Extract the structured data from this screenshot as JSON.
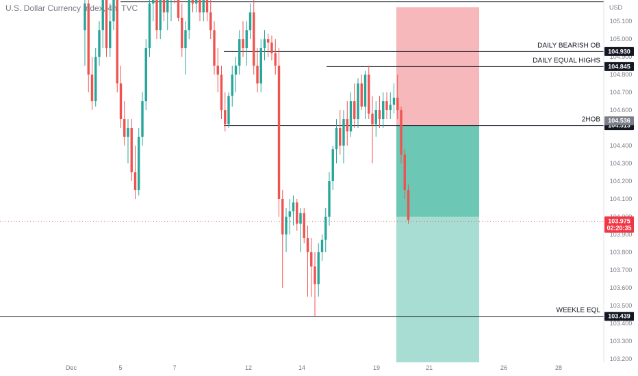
{
  "chart_data": {
    "type": "candlestick",
    "title": "U.S. Dollar Currency Index, 4h, TVC",
    "currency_label": "USD",
    "ylim": [
      103.18,
      105.22
    ],
    "y_ticks": [
      105.1,
      105.0,
      104.9,
      104.8,
      104.7,
      104.6,
      104.5,
      104.4,
      104.3,
      104.2,
      104.1,
      104.0,
      103.9,
      103.8,
      103.7,
      103.6,
      103.5,
      103.4,
      103.3,
      103.2
    ],
    "x_ticks": [
      "Dec",
      "5",
      "7",
      "12",
      "14",
      "19",
      "21",
      "26",
      "28"
    ],
    "grid": false,
    "colors": {
      "up": "#26a69a",
      "down": "#ef5350",
      "risk": "#f7b8bc",
      "reward": "#6cc7b5",
      "target": "#a7ddd2",
      "level": "#131722",
      "dark_tag": "#131722",
      "price_tag": "#f23645",
      "mid_tag": "#7b7e89"
    },
    "candles": [
      [
        105.05,
        105.3,
        104.85,
        105.2
      ],
      [
        105.2,
        105.25,
        104.7,
        104.8
      ],
      [
        104.8,
        104.9,
        104.6,
        104.65
      ],
      [
        104.65,
        104.95,
        104.62,
        104.9
      ],
      [
        104.9,
        105.1,
        104.85,
        105.05
      ],
      [
        105.05,
        105.35,
        104.95,
        105.3
      ],
      [
        105.3,
        105.35,
        104.9,
        104.95
      ],
      [
        104.95,
        105.2,
        104.9,
        105.1
      ],
      [
        105.1,
        105.3,
        105.05,
        105.28
      ],
      [
        105.28,
        105.35,
        104.7,
        104.75
      ],
      [
        104.75,
        104.85,
        104.5,
        104.55
      ],
      [
        104.55,
        104.65,
        104.4,
        104.45
      ],
      [
        104.45,
        104.55,
        104.3,
        104.5
      ],
      [
        104.5,
        104.55,
        104.2,
        104.25
      ],
      [
        104.25,
        104.4,
        104.1,
        104.15
      ],
      [
        104.15,
        104.5,
        104.12,
        104.45
      ],
      [
        104.45,
        104.7,
        104.4,
        104.65
      ],
      [
        104.65,
        105.0,
        104.6,
        104.95
      ],
      [
        104.95,
        105.25,
        104.9,
        105.2
      ],
      [
        105.2,
        105.35,
        105.1,
        105.3
      ],
      [
        105.3,
        105.35,
        105.0,
        105.05
      ],
      [
        105.05,
        105.3,
        105.0,
        105.25
      ],
      [
        105.25,
        105.32,
        105.1,
        105.15
      ],
      [
        105.15,
        105.25,
        105.05,
        105.22
      ],
      [
        105.22,
        105.3,
        105.1,
        105.28
      ],
      [
        105.28,
        105.35,
        105.2,
        105.25
      ],
      [
        105.25,
        105.3,
        105.1,
        105.12
      ],
      [
        105.12,
        105.2,
        104.9,
        104.95
      ],
      [
        104.95,
        105.1,
        104.8,
        105.05
      ],
      [
        105.05,
        105.35,
        105.0,
        105.3
      ],
      [
        105.3,
        105.35,
        105.15,
        105.2
      ],
      [
        105.2,
        105.35,
        105.15,
        105.3
      ],
      [
        105.3,
        105.35,
        105.1,
        105.15
      ],
      [
        105.15,
        105.3,
        105.1,
        105.25
      ],
      [
        105.25,
        105.35,
        105.1,
        105.15
      ],
      [
        105.15,
        105.25,
        105.0,
        105.05
      ],
      [
        105.05,
        105.1,
        104.8,
        104.85
      ],
      [
        104.85,
        104.95,
        104.7,
        104.8
      ],
      [
        104.8,
        104.85,
        104.55,
        104.6
      ],
      [
        104.6,
        104.7,
        104.48,
        104.52
      ],
      [
        104.52,
        104.7,
        104.5,
        104.68
      ],
      [
        104.68,
        104.85,
        104.62,
        104.8
      ],
      [
        104.8,
        104.9,
        104.7,
        104.85
      ],
      [
        104.85,
        105.05,
        104.8,
        105.0
      ],
      [
        105.0,
        105.1,
        104.9,
        104.95
      ],
      [
        104.95,
        105.1,
        104.85,
        105.05
      ],
      [
        105.05,
        105.2,
        105.0,
        105.15
      ],
      [
        105.15,
        105.25,
        104.8,
        104.85
      ],
      [
        104.85,
        104.95,
        104.7,
        104.75
      ],
      [
        104.75,
        105.0,
        104.7,
        104.95
      ],
      [
        104.95,
        105.05,
        104.88,
        105.0
      ],
      [
        105.0,
        105.03,
        104.9,
        104.98
      ],
      [
        104.98,
        105.02,
        104.88,
        104.92
      ],
      [
        104.92,
        105.0,
        104.8,
        104.85
      ],
      [
        104.85,
        104.95,
        104.0,
        104.1
      ],
      [
        104.1,
        104.15,
        103.6,
        103.9
      ],
      [
        103.9,
        104.05,
        103.8,
        104.0
      ],
      [
        104.0,
        104.1,
        103.9,
        104.03
      ],
      [
        104.03,
        104.12,
        103.95,
        104.08
      ],
      [
        104.08,
        104.1,
        103.92,
        103.96
      ],
      [
        103.96,
        104.05,
        103.8,
        104.02
      ],
      [
        104.02,
        104.05,
        103.85,
        103.88
      ],
      [
        103.88,
        103.95,
        103.55,
        103.8
      ],
      [
        103.8,
        103.88,
        103.55,
        103.72
      ],
      [
        103.72,
        103.8,
        103.44,
        103.62
      ],
      [
        103.62,
        103.85,
        103.55,
        103.8
      ],
      [
        103.8,
        103.9,
        103.75,
        103.87
      ],
      [
        103.87,
        104.05,
        103.8,
        104.0
      ],
      [
        104.0,
        104.25,
        103.95,
        104.2
      ],
      [
        104.2,
        104.4,
        104.15,
        104.38
      ],
      [
        104.38,
        104.55,
        104.3,
        104.5
      ],
      [
        104.5,
        104.6,
        104.35,
        104.4
      ],
      [
        104.4,
        104.6,
        104.3,
        104.55
      ],
      [
        104.55,
        104.65,
        104.4,
        104.48
      ],
      [
        104.48,
        104.7,
        104.45,
        104.65
      ],
      [
        104.65,
        104.75,
        104.5,
        104.55
      ],
      [
        104.55,
        104.78,
        104.5,
        104.75
      ],
      [
        104.75,
        104.8,
        104.6,
        104.62
      ],
      [
        104.62,
        104.82,
        104.55,
        104.8
      ],
      [
        104.8,
        104.85,
        104.55,
        104.58
      ],
      [
        104.58,
        104.68,
        104.3,
        104.52
      ],
      [
        104.52,
        104.65,
        104.45,
        104.6
      ],
      [
        104.6,
        104.68,
        104.5,
        104.55
      ],
      [
        104.55,
        104.7,
        104.5,
        104.65
      ],
      [
        104.65,
        104.7,
        104.55,
        104.6
      ],
      [
        104.6,
        104.7,
        104.55,
        104.63
      ],
      [
        104.63,
        104.75,
        104.58,
        104.67
      ],
      [
        104.67,
        104.8,
        104.55,
        104.6
      ],
      [
        104.6,
        104.62,
        104.3,
        104.35
      ],
      [
        104.35,
        104.38,
        104.1,
        104.15
      ],
      [
        104.15,
        104.18,
        103.96,
        103.98
      ]
    ],
    "levels": [
      {
        "label": "DAILY BEARISH OB",
        "price": 104.93,
        "tag": "104.930"
      },
      {
        "label": "DAILY EQUAL HIGHS",
        "price": 104.845,
        "tag": "104.845"
      },
      {
        "label": "2HOB",
        "price": 104.513,
        "tag": "104.513"
      },
      {
        "label": "WEEKLE EQL",
        "price": 103.439,
        "tag": "103.439"
      }
    ],
    "top_line_price": 105.21,
    "position": {
      "stop": 105.18,
      "entry": 104.513,
      "target": 103.18,
      "current_zone_bottom": 104.0
    },
    "last_price": {
      "value": "103.975",
      "countdown": "02:20:35"
    },
    "entry_marker": {
      "value": "104.536"
    }
  }
}
